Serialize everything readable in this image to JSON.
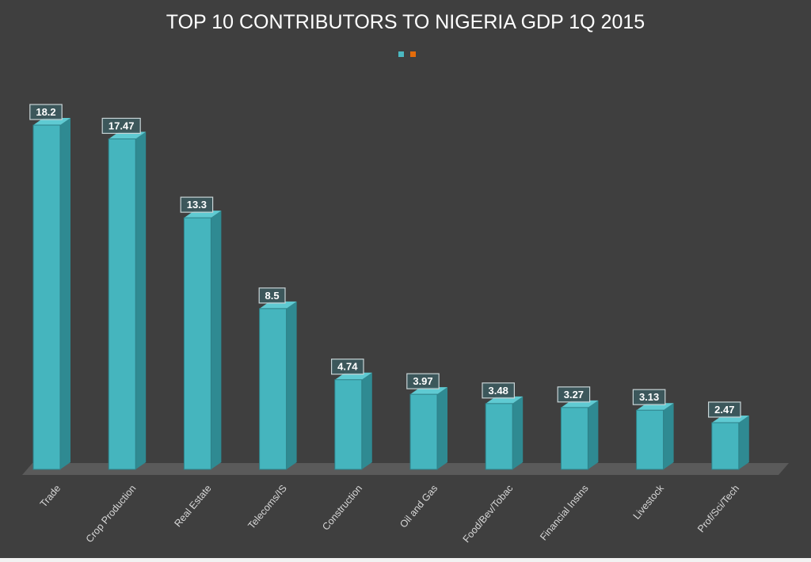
{
  "chart_data": {
    "type": "bar",
    "title": "TOP 10 CONTRIBUTORS TO NIGERIA GDP 1Q 2015",
    "categories": [
      "Trade",
      "Crop Production",
      "Real Estate",
      "Telecoms/IS",
      "Construction",
      "Oil and Gas",
      "Food/Bev/Tobac",
      "Financial Instns",
      "Livestock",
      "Prof/Sci/Tech"
    ],
    "values": [
      18.2,
      17.47,
      13.3,
      8.5,
      4.74,
      3.97,
      3.48,
      3.27,
      3.13,
      2.47
    ],
    "data_labels": [
      "18.2",
      "17.47",
      "13.3",
      "8.5",
      "4.74",
      "3.97",
      "3.48",
      "3.27",
      "3.13",
      "2.47"
    ],
    "xlabel": "",
    "ylabel": "",
    "ylim": [
      0,
      20
    ],
    "grid": false,
    "style": "3d-column",
    "legend": {
      "placement": "top",
      "entry_colors": [
        "#4bb8c1",
        "#e46c0a"
      ]
    },
    "colors": {
      "bar": "#45b5be",
      "bar_side": "#2f8a92",
      "bar_top": "#5fcad2",
      "background": "#3f3f3f",
      "floor": "#5a5a5a"
    }
  }
}
